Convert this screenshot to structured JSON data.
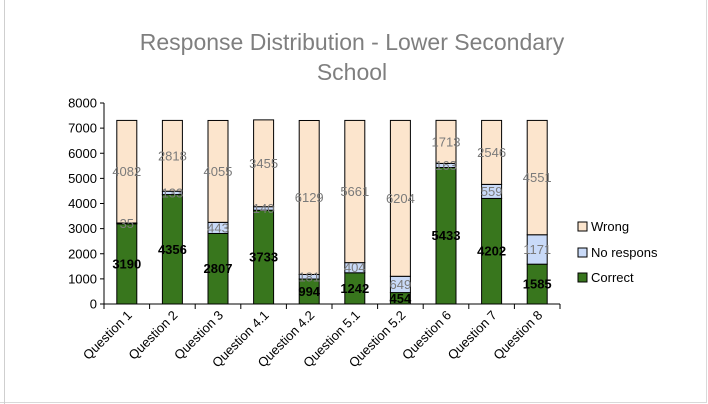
{
  "chart_data": {
    "type": "bar",
    "stacked": true,
    "title_line1": "Response Distribution - Lower Secondary",
    "title_line2": "School",
    "categories": [
      "Question 1",
      "Question 2",
      "Question 3",
      "Question 4.1",
      "Question 4.2",
      "Question 5.1",
      "Question 5.2",
      "Question 6",
      "Question 7",
      "Question 8"
    ],
    "series": [
      {
        "name": "Correct",
        "color": "#38761d",
        "values": [
          3190,
          4356,
          2807,
          3733,
          994,
          1242,
          454,
          5433,
          4202,
          1585
        ]
      },
      {
        "name": "No respons",
        "color": "#c9daf8",
        "values": [
          35,
          133,
          443,
          140,
          181,
          404,
          649,
          163,
          559,
          1171
        ]
      },
      {
        "name": "Wrong",
        "color": "#fce5cd",
        "values": [
          4082,
          2818,
          4055,
          3455,
          6129,
          5661,
          6204,
          1713,
          2546,
          4551
        ]
      }
    ],
    "ylim": [
      0,
      8000
    ],
    "yticks": [
      "0",
      "1000",
      "2000",
      "3000",
      "4000",
      "5000",
      "6000",
      "7000",
      "8000"
    ],
    "legend_position": "right",
    "grid": false
  }
}
